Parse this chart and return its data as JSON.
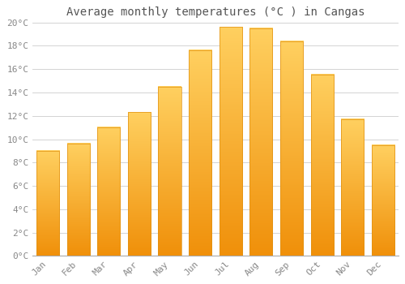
{
  "months": [
    "Jan",
    "Feb",
    "Mar",
    "Apr",
    "May",
    "Jun",
    "Jul",
    "Aug",
    "Sep",
    "Oct",
    "Nov",
    "Dec"
  ],
  "temperatures": [
    9.0,
    9.6,
    11.0,
    12.3,
    14.5,
    17.6,
    19.6,
    19.5,
    18.4,
    15.5,
    11.7,
    9.5
  ],
  "title": "Average monthly temperatures (°C ) in Cangas",
  "bar_color_top": "#FFD060",
  "bar_color_bottom": "#F0900A",
  "bar_edge_color": "#E09010",
  "background_color": "#FFFFFF",
  "grid_color": "#CCCCCC",
  "tick_label_color": "#888888",
  "title_color": "#555555",
  "ylim": [
    0,
    20
  ],
  "ytick_values": [
    0,
    2,
    4,
    6,
    8,
    10,
    12,
    14,
    16,
    18,
    20
  ],
  "ytick_labels": [
    "0°C",
    "2°C",
    "4°C",
    "6°C",
    "8°C",
    "10°C",
    "12°C",
    "14°C",
    "16°C",
    "18°C",
    "20°C"
  ],
  "title_fontsize": 10,
  "tick_fontsize": 8,
  "bar_width": 0.75
}
